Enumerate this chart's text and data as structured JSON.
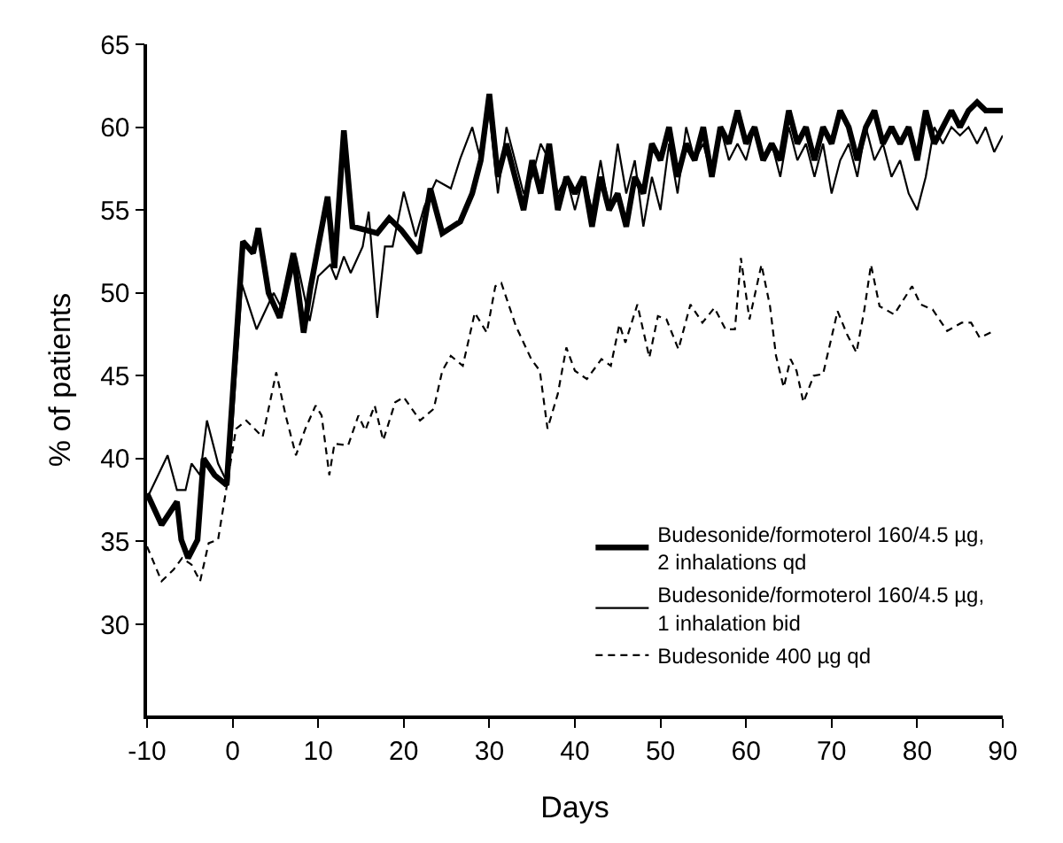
{
  "chart_data": {
    "type": "line",
    "xlabel": "Days",
    "ylabel": "% of patients",
    "xlim": [
      -10,
      90
    ],
    "xticks": [
      -10,
      0,
      10,
      20,
      30,
      40,
      50,
      60,
      70,
      80,
      90
    ],
    "ylim": [
      24.5,
      65
    ],
    "yticks": [
      30,
      35,
      40,
      45,
      50,
      55,
      60,
      65
    ],
    "legend": "bottom right",
    "marker": "none",
    "series": [
      {
        "name": "Budesonide/formoterol 160/4.5 µg,\n2 inhalations qd",
        "color": "#000000",
        "line_style": "solid",
        "x": [
          -10,
          -8.3,
          -6.5,
          -6.0,
          -5.2,
          -4.1,
          -3.4,
          -2.1,
          -0.7,
          1.2,
          2.4,
          3.0,
          4.2,
          5.5,
          7.1,
          8.3,
          9.1,
          10.0,
          11.1,
          11.9,
          13.0,
          14.0,
          15.5,
          16.9,
          18.3,
          19.7,
          21.8,
          23.1,
          24.5,
          26.6,
          28,
          29,
          30,
          31,
          32,
          33,
          34,
          35,
          36,
          37,
          38,
          39,
          40,
          41,
          42,
          43,
          44,
          45,
          46,
          47,
          48,
          49,
          50,
          51,
          52,
          53,
          54,
          55,
          56,
          57,
          58,
          59,
          60,
          61,
          62,
          63,
          64,
          65,
          66,
          67,
          68,
          69,
          70,
          71,
          72,
          73,
          74,
          75,
          76,
          77,
          78,
          79,
          80,
          81,
          82,
          83,
          84,
          85,
          86,
          87,
          88,
          90
        ],
        "values": [
          37.9,
          36.0,
          37.4,
          35.1,
          34.0,
          35.1,
          40.0,
          39.0,
          38.4,
          53.1,
          52.4,
          53.9,
          50.0,
          48.5,
          52.4,
          47.6,
          50.3,
          52.8,
          55.8,
          51.5,
          59.8,
          54.0,
          53.8,
          53.6,
          54.5,
          53.8,
          52.4,
          56.3,
          53.6,
          54.3,
          56,
          58,
          62,
          57,
          59,
          57,
          55,
          58,
          56,
          59,
          55,
          57,
          56,
          57,
          54,
          57,
          55,
          56,
          54,
          57,
          56,
          59,
          58,
          60,
          57,
          59,
          58,
          60,
          57,
          60,
          59,
          61,
          59,
          60,
          58,
          59,
          58,
          61,
          59,
          60,
          58,
          60,
          59,
          61,
          60,
          58,
          60,
          61,
          59,
          60,
          59,
          60,
          58,
          61,
          59,
          60,
          61,
          60,
          61,
          61.5,
          61,
          61
        ]
      },
      {
        "name": "Budesonide/formoterol 160/4.5 µg,\n1 inhalation bid",
        "color": "#000000",
        "line_style": "solid",
        "x": [
          -10,
          -7.6,
          -6.5,
          -5.5,
          -4.8,
          -3.8,
          -3.0,
          -1.7,
          -0.5,
          1.1,
          2.8,
          4.8,
          5.9,
          7.4,
          9.0,
          10.0,
          11.4,
          12.1,
          13.0,
          13.8,
          15.2,
          15.9,
          16.9,
          17.8,
          18.7,
          20.0,
          21.4,
          22.4,
          23.8,
          25.5,
          26.6,
          28,
          29,
          30,
          31,
          32,
          33,
          34,
          35,
          36,
          37,
          38,
          39,
          40,
          41,
          42,
          43,
          44,
          45,
          46,
          47,
          48,
          49,
          50,
          51,
          52,
          53,
          54,
          55,
          56,
          57,
          58,
          59,
          60,
          61,
          62,
          63,
          64,
          65,
          66,
          67,
          68,
          69,
          70,
          71,
          72,
          73,
          74,
          75,
          76,
          77,
          78,
          79,
          80,
          81,
          82,
          83,
          84,
          85,
          86,
          87,
          88,
          89,
          90
        ],
        "values": [
          37.6,
          40.2,
          38.1,
          38.1,
          39.7,
          39.0,
          42.3,
          39.7,
          38.4,
          50.5,
          47.8,
          50.0,
          48.9,
          52.2,
          48.3,
          51.0,
          51.7,
          50.8,
          52.2,
          51.2,
          52.8,
          54.9,
          48.5,
          52.8,
          52.8,
          56.1,
          53.4,
          55.2,
          56.8,
          56.3,
          58.1,
          60,
          58,
          61,
          56,
          60,
          58,
          56,
          57,
          59,
          58,
          56,
          57,
          55,
          57,
          55,
          58,
          55,
          59,
          56,
          58,
          54,
          57,
          55,
          59,
          56,
          60,
          58,
          59,
          57,
          60,
          58,
          59,
          58,
          60,
          58,
          59,
          57,
          60,
          58,
          59,
          57,
          59,
          56,
          58,
          59,
          57,
          60,
          58,
          59,
          57,
          58,
          56,
          55,
          57,
          60,
          59,
          60,
          59.5,
          60,
          59,
          60,
          58.5,
          59.5
        ]
      },
      {
        "name": "Budesonide 400 µg qd",
        "color": "#000000",
        "line_style": "dashed",
        "x": [
          -10,
          -8.3,
          -6.9,
          -5.9,
          -4.8,
          -3.8,
          -2.8,
          -1.7,
          -0.7,
          0.4,
          1.6,
          3.5,
          5.1,
          6.2,
          7.4,
          8.5,
          9.7,
          10.4,
          11.3,
          11.9,
          13.5,
          14.7,
          15.5,
          16.6,
          17.6,
          19.0,
          20.0,
          21.9,
          23.5,
          24.5,
          25.5,
          26.9,
          28.3,
          29.7,
          30.7,
          31.4,
          33.1,
          34.9,
          35.9,
          36.8,
          38.0,
          39.0,
          40.0,
          41.4,
          43.1,
          44.2,
          45.2,
          45.9,
          47.3,
          48.7,
          49.7,
          50.7,
          52.1,
          53.5,
          54.9,
          56.3,
          57.6,
          58.7,
          59.4,
          60.4,
          61.8,
          62.8,
          63.5,
          64.4,
          65.2,
          65.9,
          66.7,
          67.9,
          69.0,
          70.7,
          71.8,
          72.9,
          73.8,
          74.6,
          75.6,
          77.3,
          79.4,
          80.4,
          81.8,
          83.5,
          85.2,
          86.3,
          87.3,
          89.0
        ],
        "values": [
          34.7,
          32.6,
          33.3,
          34.0,
          33.6,
          32.6,
          34.9,
          35.1,
          38.3,
          41.8,
          42.3,
          41.3,
          45.2,
          42.6,
          40.2,
          41.8,
          43.2,
          42.6,
          39.0,
          40.9,
          40.8,
          42.6,
          41.7,
          43.2,
          41.1,
          43.4,
          43.7,
          42.3,
          43.0,
          45.3,
          46.2,
          45.6,
          48.8,
          47.6,
          50.4,
          50.6,
          48.0,
          46.0,
          45.3,
          41.8,
          43.9,
          46.7,
          45.3,
          44.8,
          46.0,
          45.6,
          48.1,
          47.0,
          49.3,
          46.1,
          48.6,
          48.4,
          46.6,
          49.3,
          48.2,
          49.1,
          47.8,
          47.8,
          52.1,
          48.4,
          51.7,
          49.2,
          46.2,
          44.3,
          46.0,
          45.3,
          43.4,
          45.0,
          45.1,
          48.9,
          47.5,
          46.4,
          48.9,
          51.7,
          49.2,
          48.7,
          50.4,
          49.3,
          49.0,
          47.7,
          48.2,
          48.2,
          47.3,
          47.7
        ]
      }
    ]
  }
}
